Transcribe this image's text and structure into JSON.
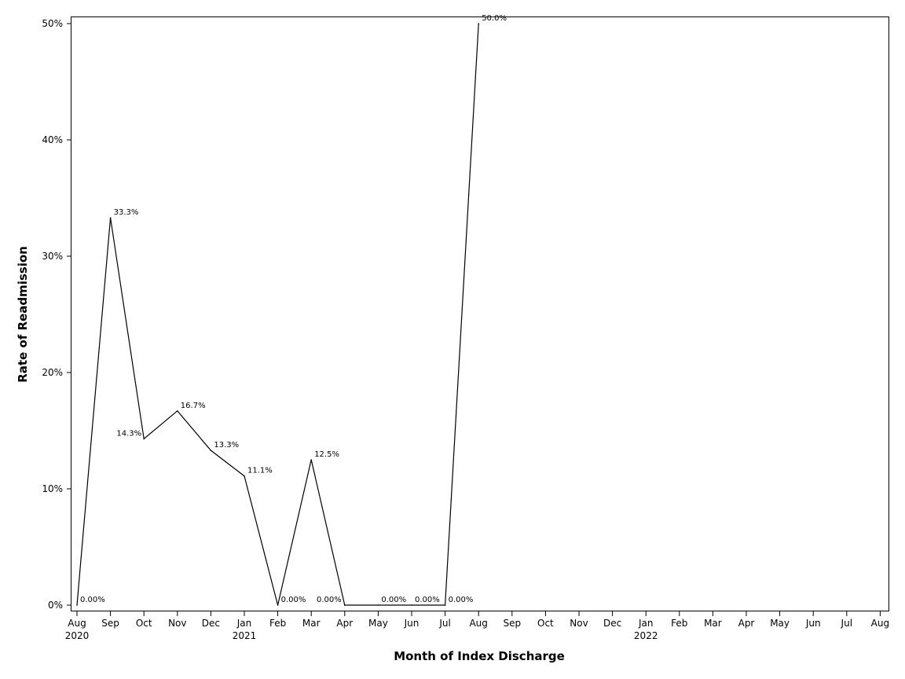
{
  "chart_data": {
    "type": "line",
    "title": "",
    "xlabel": "Month of Index Discharge",
    "ylabel": "Rate of Readmission",
    "x_ticks": [
      {
        "month": "Aug",
        "year": "2020"
      },
      {
        "month": "Sep",
        "year": ""
      },
      {
        "month": "Oct",
        "year": ""
      },
      {
        "month": "Nov",
        "year": ""
      },
      {
        "month": "Dec",
        "year": ""
      },
      {
        "month": "Jan",
        "year": "2021"
      },
      {
        "month": "Feb",
        "year": ""
      },
      {
        "month": "Mar",
        "year": ""
      },
      {
        "month": "Apr",
        "year": ""
      },
      {
        "month": "May",
        "year": ""
      },
      {
        "month": "Jun",
        "year": ""
      },
      {
        "month": "Jul",
        "year": ""
      },
      {
        "month": "Aug",
        "year": ""
      },
      {
        "month": "Sep",
        "year": ""
      },
      {
        "month": "Oct",
        "year": ""
      },
      {
        "month": "Nov",
        "year": ""
      },
      {
        "month": "Dec",
        "year": ""
      },
      {
        "month": "Jan",
        "year": "2022"
      },
      {
        "month": "Feb",
        "year": ""
      },
      {
        "month": "Mar",
        "year": ""
      },
      {
        "month": "Apr",
        "year": ""
      },
      {
        "month": "May",
        "year": ""
      },
      {
        "month": "Jun",
        "year": ""
      },
      {
        "month": "Jul",
        "year": ""
      },
      {
        "month": "Aug",
        "year": ""
      }
    ],
    "y_ticks": [
      "0%",
      "10%",
      "20%",
      "30%",
      "40%",
      "50%"
    ],
    "ylim": [
      0,
      50
    ],
    "series": [
      {
        "color": "#000000",
        "points": [
          {
            "x": "2020-08",
            "y": 0.0,
            "label": "0.00%"
          },
          {
            "x": "2020-09",
            "y": 33.3,
            "label": "33.3%"
          },
          {
            "x": "2020-10",
            "y": 14.3,
            "label": "14.3%"
          },
          {
            "x": "2020-11",
            "y": 16.7,
            "label": "16.7%"
          },
          {
            "x": "2020-12",
            "y": 13.3,
            "label": "13.3%"
          },
          {
            "x": "2021-01",
            "y": 11.1,
            "label": "11.1%"
          },
          {
            "x": "2021-02",
            "y": 0.0,
            "label": "0.00%"
          },
          {
            "x": "2021-03",
            "y": 12.5,
            "label": "12.5%"
          },
          {
            "x": "2021-04",
            "y": 0.0,
            "label": "0.00%"
          },
          {
            "x": "2021-05",
            "y": 0.0,
            "label": "0.00%"
          },
          {
            "x": "2021-06",
            "y": 0.0,
            "label": "0.00%"
          },
          {
            "x": "2021-07",
            "y": 0.0,
            "label": "0.00%"
          },
          {
            "x": "2021-08",
            "y": 50.0,
            "label": "50.0%"
          }
        ]
      }
    ],
    "grid": false,
    "legend": "none"
  }
}
